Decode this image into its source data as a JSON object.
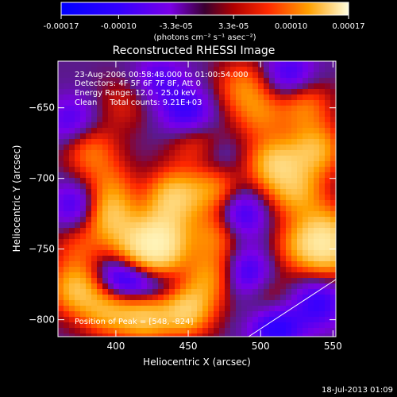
{
  "chart_data": {
    "type": "heatmap",
    "title": "Reconstructed RHESSI Image",
    "xlabel": "Heliocentric X (arcsec)",
    "ylabel": "Heliocentric Y (arcsec)",
    "xlim": [
      360,
      552
    ],
    "ylim": [
      -812,
      -617
    ],
    "xticks": [
      400,
      450,
      500,
      550
    ],
    "yticks": [
      -650,
      -700,
      -750,
      -800
    ],
    "colorbar": {
      "label": "(photons cm⁻² s⁻¹ asec⁻²)",
      "range": [
        -0.00017,
        0.00017
      ],
      "ticks": [
        "-0.00017",
        "-0.00010",
        "-3.3e-05",
        "3.3e-05",
        "0.00010",
        "0.00017"
      ]
    },
    "annotations": [
      "23-Aug-2006 00:58:48.000 to 01:00:54.000",
      "Detectors: 4F 5F 6F 7F 8F, Att 0",
      "Energy Range: 12.0 - 25.0 keV",
      "Clean     Total counts: 9.21E+03"
    ],
    "peak_label": "Position of Peak = [548, -824]",
    "blobs": [
      {
        "x": 448,
        "y": -792,
        "v": 1.0
      },
      {
        "x": 420,
        "y": -796,
        "v": 0.9
      },
      {
        "x": 395,
        "y": -792,
        "v": 0.75
      },
      {
        "x": 373,
        "y": -778,
        "v": 0.8
      },
      {
        "x": 430,
        "y": -755,
        "v": 0.85
      },
      {
        "x": 432,
        "y": -738,
        "v": 0.7
      },
      {
        "x": 412,
        "y": -748,
        "v": 0.65
      },
      {
        "x": 395,
        "y": -726,
        "v": 0.8
      },
      {
        "x": 440,
        "y": -713,
        "v": 0.85
      },
      {
        "x": 468,
        "y": -706,
        "v": 0.7
      },
      {
        "x": 510,
        "y": -690,
        "v": 0.85
      },
      {
        "x": 538,
        "y": -680,
        "v": 0.75
      },
      {
        "x": 525,
        "y": -710,
        "v": 0.65
      },
      {
        "x": 468,
        "y": -740,
        "v": 0.55
      },
      {
        "x": 528,
        "y": -748,
        "v": 0.55
      },
      {
        "x": 548,
        "y": -752,
        "v": 0.75
      },
      {
        "x": 545,
        "y": -735,
        "v": 0.55
      },
      {
        "x": 455,
        "y": -675,
        "v": 0.45
      },
      {
        "x": 382,
        "y": -680,
        "v": 0.5
      },
      {
        "x": 500,
        "y": -655,
        "v": 0.45
      },
      {
        "x": 530,
        "y": -648,
        "v": 0.55
      },
      {
        "x": 488,
        "y": -635,
        "v": 0.5
      },
      {
        "x": 405,
        "y": -648,
        "v": 0.25
      },
      {
        "x": 395,
        "y": -705,
        "v": 0.4
      },
      {
        "x": 465,
        "y": -770,
        "v": 0.6
      },
      {
        "x": 505,
        "y": -785,
        "v": 0.35
      },
      {
        "x": 375,
        "y": -748,
        "v": 0.35
      },
      {
        "x": 450,
        "y": -655,
        "v": -0.55
      },
      {
        "x": 430,
        "y": -630,
        "v": -0.35
      },
      {
        "x": 520,
        "y": -628,
        "v": -0.5
      },
      {
        "x": 485,
        "y": -725,
        "v": -0.55
      },
      {
        "x": 375,
        "y": -720,
        "v": -0.55
      },
      {
        "x": 400,
        "y": -772,
        "v": -0.6
      },
      {
        "x": 418,
        "y": -776,
        "v": -0.5
      },
      {
        "x": 490,
        "y": -768,
        "v": -0.55
      },
      {
        "x": 510,
        "y": -805,
        "v": -0.65
      },
      {
        "x": 370,
        "y": -660,
        "v": -0.4
      },
      {
        "x": 540,
        "y": -788,
        "v": -0.5
      },
      {
        "x": 468,
        "y": -690,
        "v": -0.35
      },
      {
        "x": 438,
        "y": -778,
        "v": -0.35
      }
    ]
  },
  "footer": {
    "timestamp": "18-Jul-2013 01:09"
  }
}
